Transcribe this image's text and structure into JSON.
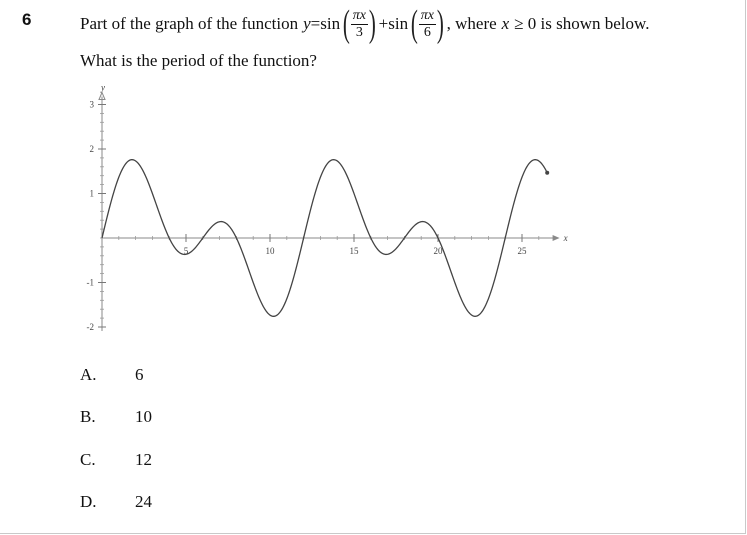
{
  "question": {
    "number": "6",
    "stem_prefix": "Part of the graph of the function",
    "y_var": "y",
    "eq": "=",
    "sin1": "sin",
    "frac1_num": "πx",
    "frac1_den": "3",
    "plus": "+",
    "sin2": "sin",
    "frac2_num": "πx",
    "frac2_den": "6",
    "stem_suffix_pre": ", where",
    "x_var": "x",
    "stem_suffix_post": "≥ 0 is shown below.",
    "prompt": "What is the period of the function?"
  },
  "chart_data": {
    "type": "line",
    "function": "sin(pi*x/3) + sin(pi*x/6)",
    "domain": [
      0,
      26.5
    ],
    "xlabel": "x",
    "ylabel": "y",
    "xlim": [
      0,
      27
    ],
    "ylim": [
      -2,
      3
    ],
    "x_tick_labels": [
      "5",
      "10",
      "15",
      "20",
      "25"
    ],
    "x_tick_values": [
      5,
      10,
      15,
      20,
      25
    ],
    "y_tick_labels": [
      "3",
      "2",
      "1",
      "-1",
      "-2"
    ],
    "y_tick_values": [
      3,
      2,
      1,
      -1,
      -2
    ],
    "grid": false,
    "series": [
      {
        "x": [
          0,
          1,
          2,
          3,
          4,
          5,
          6,
          7,
          8,
          9,
          10,
          11,
          12,
          13,
          14,
          15,
          16,
          17,
          18,
          19,
          20,
          21,
          22,
          23,
          24,
          25,
          26
        ],
        "values": [
          0,
          1.37,
          1.73,
          1.0,
          0,
          -0.37,
          0,
          0.37,
          0,
          -1.0,
          -1.73,
          -1.37,
          0,
          1.37,
          1.73,
          1.0,
          0,
          -0.37,
          0,
          0.37,
          0,
          -1.0,
          -1.73,
          -1.37,
          0,
          1.37,
          1.73
        ]
      }
    ]
  },
  "options": [
    {
      "letter": "A.",
      "value": "6"
    },
    {
      "letter": "B.",
      "value": "10"
    },
    {
      "letter": "C.",
      "value": "12"
    },
    {
      "letter": "D.",
      "value": "24"
    }
  ]
}
